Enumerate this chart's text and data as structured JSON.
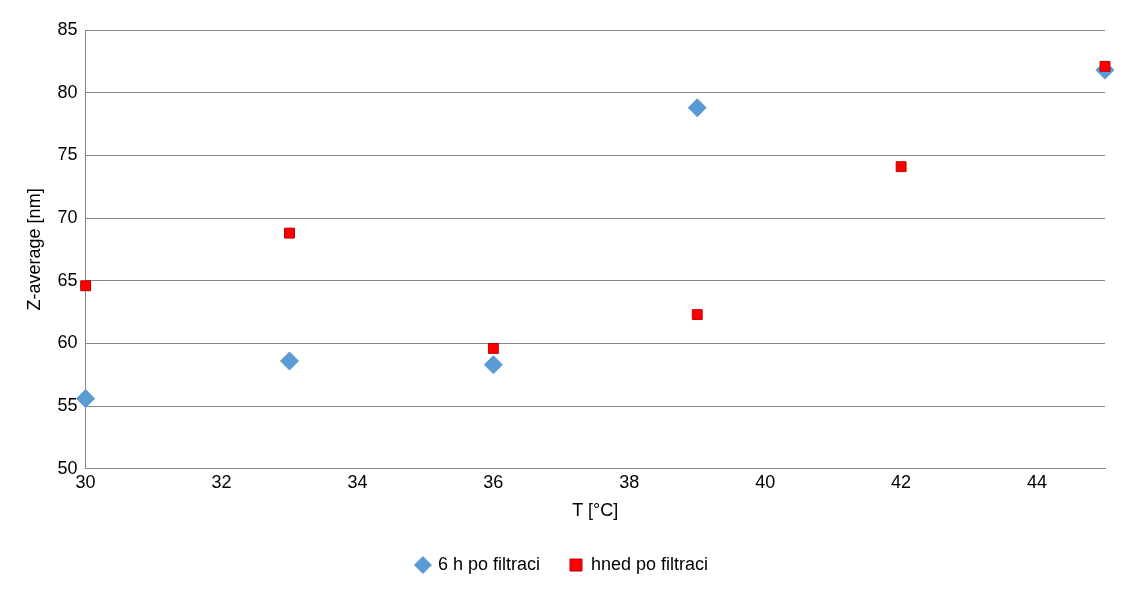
{
  "chart_data": {
    "type": "scatter",
    "xlabel": "T [°C]",
    "ylabel": "Z-average [nm]",
    "xlim": [
      30,
      45
    ],
    "xticks": [
      30,
      32,
      34,
      36,
      38,
      40,
      42,
      44
    ],
    "ylim": [
      50,
      85
    ],
    "yticks": [
      50,
      55,
      60,
      65,
      70,
      75,
      80,
      85
    ],
    "grid": "y",
    "legend": "bottom",
    "series": [
      {
        "name": "6 h po filtraci",
        "color": "#5b9bd5",
        "marker": "diamond",
        "x": [
          30,
          33,
          36,
          39,
          45
        ],
        "values": [
          55.6,
          58.6,
          58.3,
          78.8,
          81.8
        ]
      },
      {
        "name": "hned po filtraci",
        "color": "#ff0000",
        "marker": "square",
        "x": [
          30,
          33,
          36,
          39,
          42,
          45
        ],
        "values": [
          64.6,
          68.8,
          59.6,
          62.3,
          74.1,
          82.1
        ]
      }
    ]
  }
}
